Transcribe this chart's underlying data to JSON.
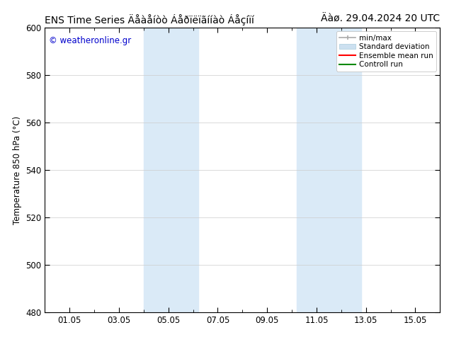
{
  "title_left": "ENS Time Series Äåàåíòò Áåðïëïãííàò Áåçíïí",
  "title_right": "Äàø. 29.04.2024 20 UTC",
  "ylabel": "Temperature 850 hPa (°C)",
  "watermark": "© weatheronline.gr",
  "watermark_color": "#0000cc",
  "background_color": "#ffffff",
  "plot_bg_color": "#ffffff",
  "shaded_regions": [
    {
      "xmin": 4.0,
      "xmax": 6.2,
      "color": "#daeaf7"
    },
    {
      "xmin": 10.2,
      "xmax": 12.8,
      "color": "#daeaf7"
    }
  ],
  "ylim": [
    480,
    600
  ],
  "yticks": [
    480,
    500,
    520,
    540,
    560,
    580,
    600
  ],
  "xticks_labels": [
    "01.05",
    "03.05",
    "05.05",
    "07.05",
    "09.05",
    "11.05",
    "13.05",
    "15.05"
  ],
  "xticks_pos": [
    1,
    3,
    5,
    7,
    9,
    11,
    13,
    15
  ],
  "xlim": [
    0,
    16
  ],
  "legend_items": [
    {
      "label": "min/max",
      "color": "#aaaaaa",
      "style": "minmax"
    },
    {
      "label": "Standard deviation",
      "color": "#cce0f0",
      "style": "fill"
    },
    {
      "label": "Ensemble mean run",
      "color": "#ff0000",
      "style": "line"
    },
    {
      "label": "Controll run",
      "color": "#008800",
      "style": "line"
    }
  ],
  "title_fontsize": 10,
  "axis_fontsize": 8.5,
  "tick_fontsize": 8.5,
  "grid_color": "#cccccc",
  "spine_color": "#000000"
}
